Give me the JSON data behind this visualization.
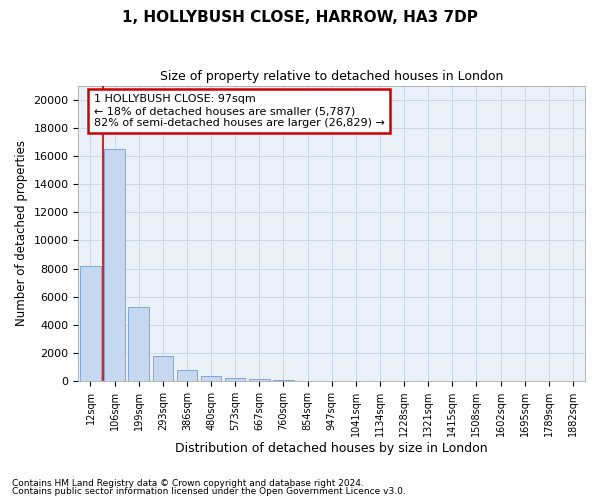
{
  "title": "1, HOLLYBUSH CLOSE, HARROW, HA3 7DP",
  "subtitle": "Size of property relative to detached houses in London",
  "xlabel": "Distribution of detached houses by size in London",
  "ylabel": "Number of detached properties",
  "bar_color": "#c5d8ef",
  "bar_edge_color": "#7aabdb",
  "grid_color": "#c8d8e8",
  "background_color": "#eaf0f8",
  "annotation_box_color": "#cc0000",
  "vline_color": "#cc0000",
  "categories": [
    "12sqm",
    "106sqm",
    "199sqm",
    "293sqm",
    "386sqm",
    "480sqm",
    "573sqm",
    "667sqm",
    "760sqm",
    "854sqm",
    "947sqm",
    "1041sqm",
    "1134sqm",
    "1228sqm",
    "1321sqm",
    "1415sqm",
    "1508sqm",
    "1602sqm",
    "1695sqm",
    "1789sqm",
    "1882sqm"
  ],
  "values": [
    8200,
    16500,
    5300,
    1800,
    800,
    350,
    250,
    175,
    100,
    50,
    0,
    0,
    0,
    0,
    0,
    0,
    0,
    0,
    0,
    0,
    0
  ],
  "ylim": [
    0,
    21000
  ],
  "yticks": [
    0,
    2000,
    4000,
    6000,
    8000,
    10000,
    12000,
    14000,
    16000,
    18000,
    20000
  ],
  "vline_x": 0.5,
  "annotation_text_line1": "1 HOLLYBUSH CLOSE: 97sqm",
  "annotation_text_line2": "← 18% of detached houses are smaller (5,787)",
  "annotation_text_line3": "82% of semi-detached houses are larger (26,829) →",
  "footnote1": "Contains HM Land Registry data © Crown copyright and database right 2024.",
  "footnote2": "Contains public sector information licensed under the Open Government Licence v3.0."
}
